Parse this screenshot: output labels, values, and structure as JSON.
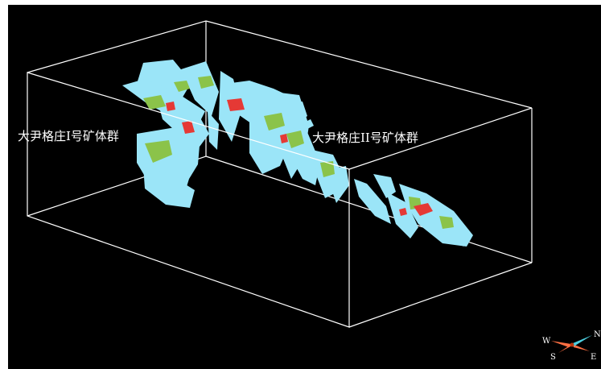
{
  "labels": {
    "group_1": "大尹格庄I号矿体群",
    "group_2": "大尹格庄II号矿体群"
  },
  "compass": {
    "north": "N",
    "south": "S",
    "east": "E",
    "west": "W"
  },
  "colors": {
    "background": "#000000",
    "frame_edge": "#ffffff",
    "orebody_main": "#9be5f8",
    "orebody_mid": "#8bc34a",
    "orebody_high": "#e53935",
    "compass_arrow": "#ff7043",
    "compass_axis": "#4dd0e1"
  }
}
